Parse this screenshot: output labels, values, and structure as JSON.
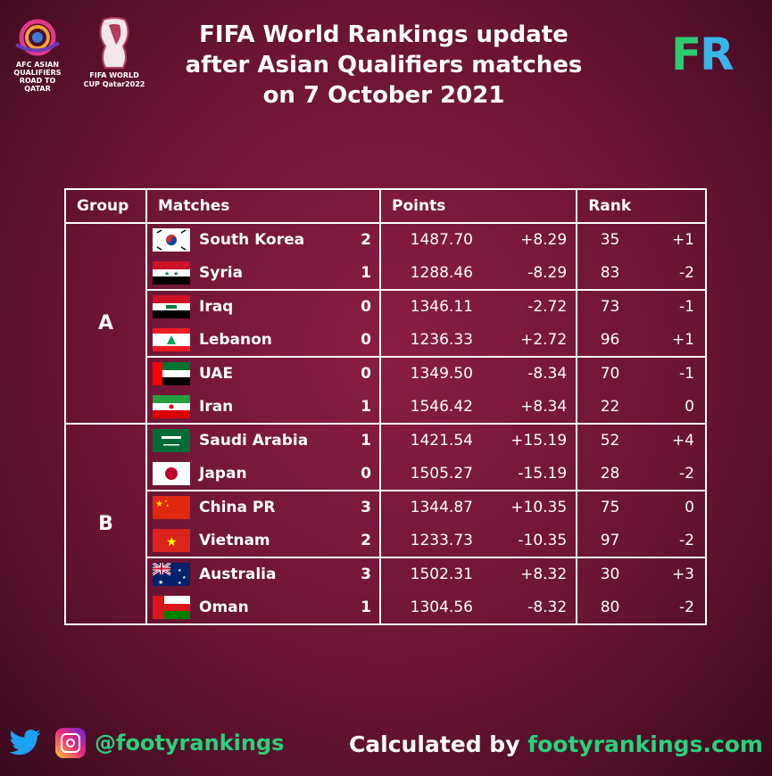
{
  "header": {
    "title_line1": "FIFA World Rankings update",
    "title_line2": "after Asian Qualifiers matches",
    "title_line3": "on 7 October 2021",
    "afc_logo_text": "AFC ASIAN QUALIFIERS ROAD TO QATAR",
    "wc_logo_text": "FIFA WORLD CUP Qatar2022",
    "fr_logo_f": "F",
    "fr_logo_r": "R"
  },
  "table": {
    "headers": [
      "Group",
      "Matches",
      "Points",
      "Rank"
    ],
    "groups": [
      {
        "name": "A",
        "rows": [
          {
            "flag": "south-korea-flag",
            "country": "South Korea",
            "score": "2",
            "points": "1487.70",
            "delta": "+8.29",
            "rank": "35",
            "rank_change": "+1"
          },
          {
            "flag": "syria-flag",
            "country": "Syria",
            "score": "1",
            "points": "1288.46",
            "delta": "-8.29",
            "rank": "83",
            "rank_change": "-2"
          },
          {
            "flag": "iraq-flag",
            "country": "Iraq",
            "score": "0",
            "points": "1346.11",
            "delta": "-2.72",
            "rank": "73",
            "rank_change": "-1"
          },
          {
            "flag": "lebanon-flag",
            "country": "Lebanon",
            "score": "0",
            "points": "1236.33",
            "delta": "+2.72",
            "rank": "96",
            "rank_change": "+1"
          },
          {
            "flag": "uae-flag",
            "country": "UAE",
            "score": "0",
            "points": "1349.50",
            "delta": "-8.34",
            "rank": "70",
            "rank_change": "-1"
          },
          {
            "flag": "iran-flag",
            "country": "Iran",
            "score": "1",
            "points": "1546.42",
            "delta": "+8.34",
            "rank": "22",
            "rank_change": "0"
          }
        ]
      },
      {
        "name": "B",
        "rows": [
          {
            "flag": "saudi-arabia-flag",
            "country": "Saudi Arabia",
            "score": "1",
            "points": "1421.54",
            "delta": "+15.19",
            "rank": "52",
            "rank_change": "+4"
          },
          {
            "flag": "japan-flag",
            "country": "Japan",
            "score": "0",
            "points": "1505.27",
            "delta": "-15.19",
            "rank": "28",
            "rank_change": "-2"
          },
          {
            "flag": "china-flag",
            "country": "China PR",
            "score": "3",
            "points": "1344.87",
            "delta": "+10.35",
            "rank": "75",
            "rank_change": "0"
          },
          {
            "flag": "vietnam-flag",
            "country": "Vietnam",
            "score": "2",
            "points": "1233.73",
            "delta": "-10.35",
            "rank": "97",
            "rank_change": "-2"
          },
          {
            "flag": "australia-flag",
            "country": "Australia",
            "score": "3",
            "points": "1502.31",
            "delta": "+8.32",
            "rank": "30",
            "rank_change": "+3"
          },
          {
            "flag": "oman-flag",
            "country": "Oman",
            "score": "1",
            "points": "1304.56",
            "delta": "-8.32",
            "rank": "80",
            "rank_change": "-2"
          }
        ]
      }
    ]
  },
  "footer": {
    "handle": "@footyrankings",
    "calc_prefix": "Calculated by ",
    "calc_site": "footyrankings.com"
  },
  "colors": {
    "background": "#7a1a3c",
    "accent_green": "#27d37a",
    "fr_blue": "#39b5e8"
  }
}
